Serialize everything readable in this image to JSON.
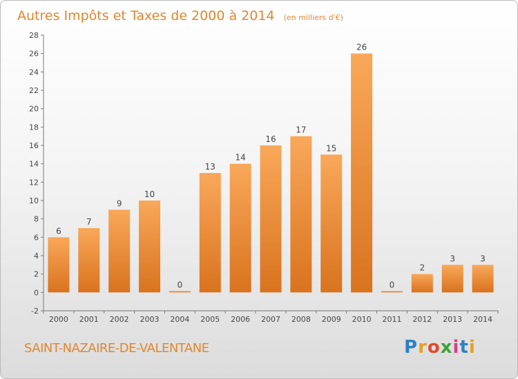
{
  "header": {
    "title": "Autres Impôts et Taxes de 2000 à 2014",
    "subtitle": "(en milliers d'€)"
  },
  "footer": {
    "commune": "SAINT-NAZAIRE-DE-VALENTANE",
    "brand": "Proxiti"
  },
  "colors": {
    "bar_light": "#f9a85a",
    "bar_dark": "#d9731e",
    "accent": "#e0862e"
  },
  "chart_data": {
    "type": "bar",
    "categories": [
      "2000",
      "2001",
      "2002",
      "2003",
      "2004",
      "2005",
      "2006",
      "2007",
      "2008",
      "2009",
      "2010",
      "2011",
      "2012",
      "2013",
      "2014"
    ],
    "values": [
      6,
      7,
      9,
      10,
      0,
      13,
      14,
      16,
      17,
      15,
      26,
      0,
      2,
      3,
      3
    ],
    "data_labels": [
      "6",
      "7",
      "9",
      "10",
      "0",
      "13",
      "14",
      "16",
      "17",
      "15",
      "26",
      "0",
      "2",
      "3",
      "3"
    ],
    "yticks": [
      "-2",
      "0",
      "2",
      "4",
      "6",
      "8",
      "10",
      "12",
      "14",
      "16",
      "18",
      "20",
      "22",
      "24",
      "26",
      "28"
    ],
    "title": "Autres Impôts et Taxes de 2000 à 2014",
    "xlabel": "",
    "ylabel": "",
    "ylim": [
      -2,
      28
    ],
    "grid": false,
    "legend": "none"
  }
}
